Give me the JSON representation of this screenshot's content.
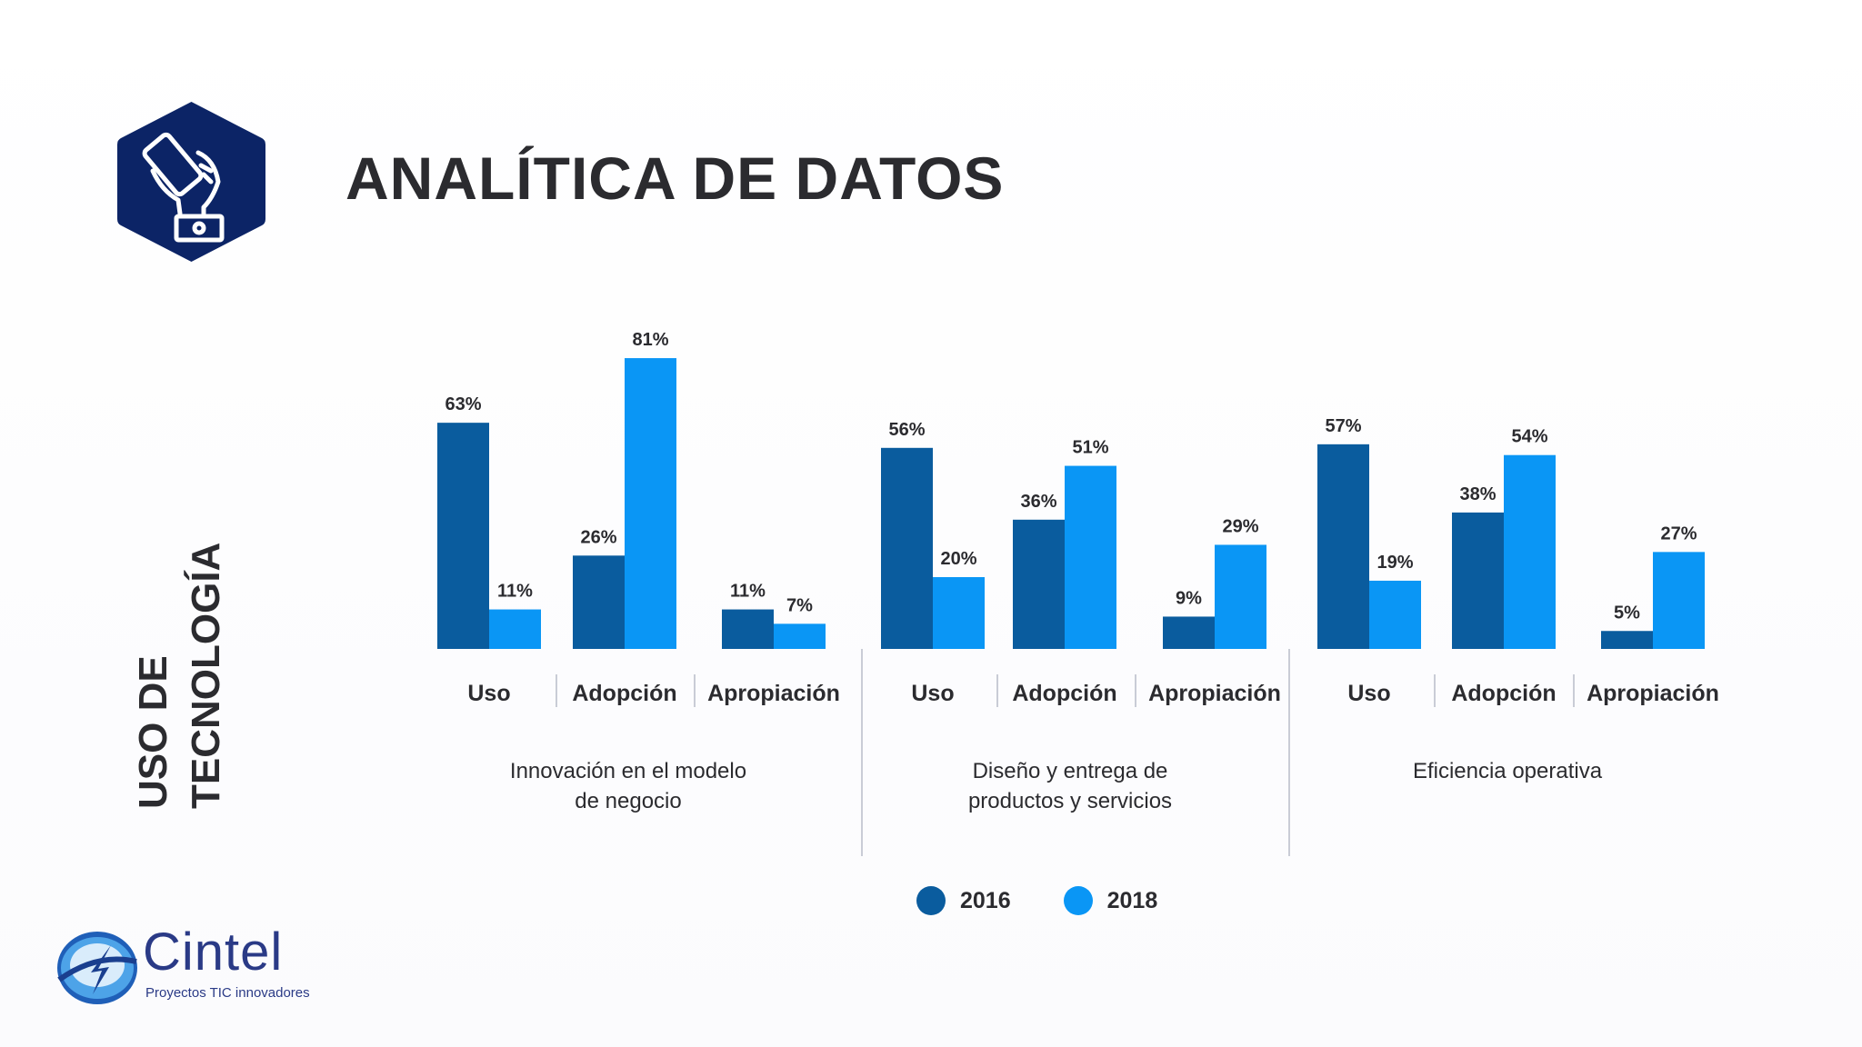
{
  "title": "ANALÍTICA DE DATOS",
  "vertical_label": [
    "USO DE",
    "TECNOLOGÍA"
  ],
  "icon": "hand-holding-phone-icon",
  "colors": {
    "series_2016": "#0a5c9e",
    "series_2018": "#0a96f5",
    "badge": "#0c2466",
    "text": "#2b2b2f"
  },
  "legend": [
    {
      "label": "2016",
      "color": "#0a5c9e"
    },
    {
      "label": "2018",
      "color": "#0a96f5"
    }
  ],
  "logo": {
    "name": "Cintel",
    "tagline": "Proyectos TIC innovadores"
  },
  "chart_data": {
    "type": "bar",
    "value_suffix": "%",
    "ylim": [
      0,
      100
    ],
    "series": [
      {
        "name": "2016"
      },
      {
        "name": "2018"
      }
    ],
    "groups": [
      {
        "label": "Innovación en el modelo\nde negocio",
        "categories": [
          {
            "label": "Uso",
            "values": [
              63,
              11
            ]
          },
          {
            "label": "Adopción",
            "values": [
              26,
              81
            ]
          },
          {
            "label": "Apropiación",
            "values": [
              11,
              7
            ]
          }
        ]
      },
      {
        "label": "Diseño y entrega de\nproductos y servicios",
        "categories": [
          {
            "label": "Uso",
            "values": [
              56,
              20
            ]
          },
          {
            "label": "Adopción",
            "values": [
              36,
              51
            ]
          },
          {
            "label": "Apropiación",
            "values": [
              9,
              29
            ]
          }
        ]
      },
      {
        "label": "Eficiencia operativa",
        "categories": [
          {
            "label": "Uso",
            "values": [
              57,
              19
            ]
          },
          {
            "label": "Adopción",
            "values": [
              38,
              54
            ]
          },
          {
            "label": "Apropiación",
            "values": [
              5,
              27
            ]
          }
        ]
      }
    ]
  }
}
